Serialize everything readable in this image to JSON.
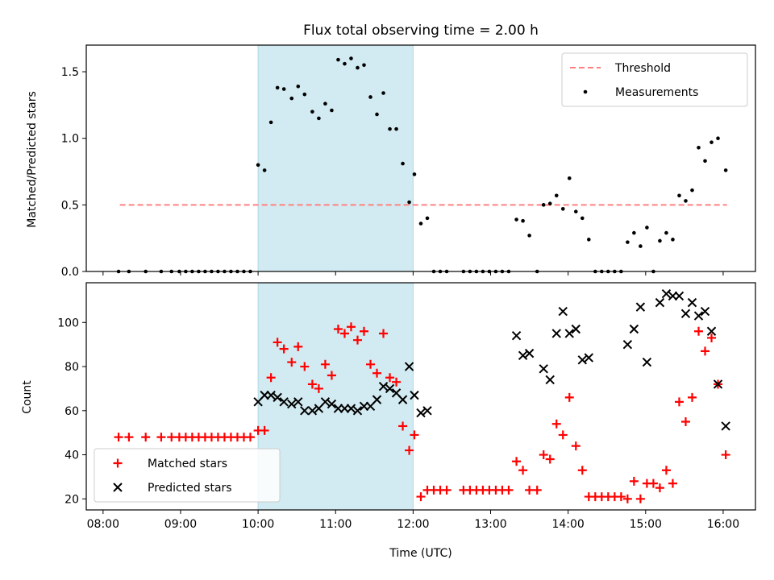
{
  "chart_data": {
    "title": "Flux total observing time = 2.00 h",
    "xlabel": "Time (UTC)",
    "x_ticks": [
      "08:00",
      "09:00",
      "10:00",
      "11:00",
      "12:00",
      "13:00",
      "14:00",
      "15:00",
      "16:00"
    ],
    "x_range": [
      "07:47",
      "16:25"
    ],
    "highlight_interval": [
      "10:00",
      "12:00"
    ],
    "highlight_color": "#add8e6",
    "panels": [
      {
        "type": "scatter",
        "ylabel": "Matched/Predicted stars",
        "ylim": [
          0.0,
          1.7
        ],
        "y_ticks": [
          "0.0",
          "0.5",
          "1.0",
          "1.5"
        ],
        "legend_position": "top-right",
        "threshold": {
          "name": "Threshold",
          "value": 0.5,
          "x_start": "08:13",
          "x_end": "16:03",
          "color": "#ff8080",
          "style": "dashed"
        },
        "series": [
          {
            "name": "Measurements",
            "color": "#000000",
            "marker": "dot",
            "points": [
              [
                "08:12",
                0.0
              ],
              [
                "08:20",
                0.0
              ],
              [
                "08:33",
                0.0
              ],
              [
                "08:45",
                0.0
              ],
              [
                "08:53",
                0.0
              ],
              [
                "08:59",
                0.0
              ],
              [
                "09:04",
                0.0
              ],
              [
                "09:09",
                0.0
              ],
              [
                "09:14",
                0.0
              ],
              [
                "09:19",
                0.0
              ],
              [
                "09:24",
                0.0
              ],
              [
                "09:29",
                0.0
              ],
              [
                "09:34",
                0.0
              ],
              [
                "09:39",
                0.0
              ],
              [
                "09:44",
                0.0
              ],
              [
                "09:49",
                0.0
              ],
              [
                "09:54",
                0.0
              ],
              [
                "10:00",
                0.8
              ],
              [
                "10:05",
                0.76
              ],
              [
                "10:10",
                1.12
              ],
              [
                "10:15",
                1.38
              ],
              [
                "10:20",
                1.37
              ],
              [
                "10:26",
                1.3
              ],
              [
                "10:31",
                1.39
              ],
              [
                "10:36",
                1.33
              ],
              [
                "10:42",
                1.2
              ],
              [
                "10:47",
                1.15
              ],
              [
                "10:52",
                1.26
              ],
              [
                "10:57",
                1.21
              ],
              [
                "11:02",
                1.59
              ],
              [
                "11:07",
                1.56
              ],
              [
                "11:12",
                1.6
              ],
              [
                "11:17",
                1.53
              ],
              [
                "11:22",
                1.55
              ],
              [
                "11:27",
                1.31
              ],
              [
                "11:32",
                1.18
              ],
              [
                "11:37",
                1.34
              ],
              [
                "11:42",
                1.07
              ],
              [
                "11:47",
                1.07
              ],
              [
                "11:52",
                0.81
              ],
              [
                "11:57",
                0.52
              ],
              [
                "12:01",
                0.73
              ],
              [
                "12:06",
                0.36
              ],
              [
                "12:11",
                0.4
              ],
              [
                "12:16",
                0.0
              ],
              [
                "12:21",
                0.0
              ],
              [
                "12:26",
                0.0
              ],
              [
                "12:39",
                0.0
              ],
              [
                "12:44",
                0.0
              ],
              [
                "12:49",
                0.0
              ],
              [
                "12:54",
                0.0
              ],
              [
                "12:59",
                0.0
              ],
              [
                "13:04",
                0.0
              ],
              [
                "13:09",
                0.0
              ],
              [
                "13:14",
                0.0
              ],
              [
                "13:20",
                0.39
              ],
              [
                "13:25",
                0.38
              ],
              [
                "13:30",
                0.27
              ],
              [
                "13:36",
                0.0
              ],
              [
                "13:41",
                0.5
              ],
              [
                "13:46",
                0.51
              ],
              [
                "13:51",
                0.57
              ],
              [
                "13:56",
                0.47
              ],
              [
                "14:01",
                0.7
              ],
              [
                "14:06",
                0.45
              ],
              [
                "14:11",
                0.4
              ],
              [
                "14:16",
                0.24
              ],
              [
                "14:21",
                0.0
              ],
              [
                "14:26",
                0.0
              ],
              [
                "14:31",
                0.0
              ],
              [
                "14:36",
                0.0
              ],
              [
                "14:41",
                0.0
              ],
              [
                "14:46",
                0.22
              ],
              [
                "14:51",
                0.29
              ],
              [
                "14:56",
                0.19
              ],
              [
                "15:01",
                0.33
              ],
              [
                "15:06",
                0.0
              ],
              [
                "15:11",
                0.23
              ],
              [
                "15:16",
                0.29
              ],
              [
                "15:21",
                0.24
              ],
              [
                "15:26",
                0.57
              ],
              [
                "15:31",
                0.53
              ],
              [
                "15:36",
                0.61
              ],
              [
                "15:41",
                0.93
              ],
              [
                "15:46",
                0.83
              ],
              [
                "15:51",
                0.97
              ],
              [
                "15:56",
                1.0
              ],
              [
                "16:02",
                0.76
              ]
            ]
          }
        ]
      },
      {
        "type": "scatter",
        "ylabel": "Count",
        "ylim": [
          15,
          118
        ],
        "y_ticks": [
          "20",
          "40",
          "60",
          "80",
          "100"
        ],
        "legend_position": "bottom-left",
        "series": [
          {
            "name": "Matched stars",
            "color": "#ff0000",
            "marker": "plus",
            "points": [
              [
                "08:12",
                48
              ],
              [
                "08:20",
                48
              ],
              [
                "08:33",
                48
              ],
              [
                "08:45",
                48
              ],
              [
                "08:53",
                48
              ],
              [
                "08:59",
                48
              ],
              [
                "09:04",
                48
              ],
              [
                "09:09",
                48
              ],
              [
                "09:14",
                48
              ],
              [
                "09:19",
                48
              ],
              [
                "09:24",
                48
              ],
              [
                "09:29",
                48
              ],
              [
                "09:34",
                48
              ],
              [
                "09:39",
                48
              ],
              [
                "09:44",
                48
              ],
              [
                "09:49",
                48
              ],
              [
                "09:54",
                48
              ],
              [
                "10:00",
                51
              ],
              [
                "10:05",
                51
              ],
              [
                "10:10",
                75
              ],
              [
                "10:15",
                91
              ],
              [
                "10:20",
                88
              ],
              [
                "10:26",
                82
              ],
              [
                "10:31",
                89
              ],
              [
                "10:36",
                80
              ],
              [
                "10:42",
                72
              ],
              [
                "10:47",
                70
              ],
              [
                "10:52",
                81
              ],
              [
                "10:57",
                76
              ],
              [
                "11:02",
                97
              ],
              [
                "11:07",
                95
              ],
              [
                "11:12",
                98
              ],
              [
                "11:17",
                92
              ],
              [
                "11:22",
                96
              ],
              [
                "11:27",
                81
              ],
              [
                "11:32",
                77
              ],
              [
                "11:37",
                95
              ],
              [
                "11:42",
                75
              ],
              [
                "11:47",
                73
              ],
              [
                "11:52",
                53
              ],
              [
                "11:57",
                42
              ],
              [
                "12:01",
                49
              ],
              [
                "12:06",
                21
              ],
              [
                "12:11",
                24
              ],
              [
                "12:16",
                24
              ],
              [
                "12:21",
                24
              ],
              [
                "12:26",
                24
              ],
              [
                "12:39",
                24
              ],
              [
                "12:44",
                24
              ],
              [
                "12:49",
                24
              ],
              [
                "12:54",
                24
              ],
              [
                "12:59",
                24
              ],
              [
                "13:04",
                24
              ],
              [
                "13:09",
                24
              ],
              [
                "13:14",
                24
              ],
              [
                "13:20",
                37
              ],
              [
                "13:25",
                33
              ],
              [
                "13:30",
                24
              ],
              [
                "13:36",
                24
              ],
              [
                "13:41",
                40
              ],
              [
                "13:46",
                38
              ],
              [
                "13:51",
                54
              ],
              [
                "13:56",
                49
              ],
              [
                "14:01",
                66
              ],
              [
                "14:06",
                44
              ],
              [
                "14:11",
                33
              ],
              [
                "14:16",
                21
              ],
              [
                "14:21",
                21
              ],
              [
                "14:26",
                21
              ],
              [
                "14:31",
                21
              ],
              [
                "14:36",
                21
              ],
              [
                "14:41",
                21
              ],
              [
                "14:46",
                20
              ],
              [
                "14:51",
                28
              ],
              [
                "14:56",
                20
              ],
              [
                "15:01",
                27
              ],
              [
                "15:06",
                27
              ],
              [
                "15:11",
                25
              ],
              [
                "15:16",
                33
              ],
              [
                "15:21",
                27
              ],
              [
                "15:26",
                64
              ],
              [
                "15:31",
                55
              ],
              [
                "15:36",
                66
              ],
              [
                "15:41",
                96
              ],
              [
                "15:46",
                87
              ],
              [
                "15:51",
                93
              ],
              [
                "15:56",
                72
              ],
              [
                "16:02",
                40
              ]
            ]
          },
          {
            "name": "Predicted stars",
            "color": "#000000",
            "marker": "x",
            "points": [
              [
                "10:00",
                64
              ],
              [
                "10:05",
                67
              ],
              [
                "10:10",
                67
              ],
              [
                "10:15",
                66
              ],
              [
                "10:20",
                64
              ],
              [
                "10:26",
                63
              ],
              [
                "10:31",
                64
              ],
              [
                "10:36",
                60
              ],
              [
                "10:42",
                60
              ],
              [
                "10:47",
                61
              ],
              [
                "10:52",
                64
              ],
              [
                "10:57",
                63
              ],
              [
                "11:02",
                61
              ],
              [
                "11:07",
                61
              ],
              [
                "11:12",
                61
              ],
              [
                "11:17",
                60
              ],
              [
                "11:22",
                62
              ],
              [
                "11:27",
                62
              ],
              [
                "11:32",
                65
              ],
              [
                "11:37",
                71
              ],
              [
                "11:42",
                70
              ],
              [
                "11:47",
                68
              ],
              [
                "11:52",
                65
              ],
              [
                "11:57",
                80
              ],
              [
                "12:01",
                67
              ],
              [
                "12:06",
                59
              ],
              [
                "12:11",
                60
              ],
              [
                "13:20",
                94
              ],
              [
                "13:25",
                85
              ],
              [
                "13:30",
                86
              ],
              [
                "13:41",
                79
              ],
              [
                "13:46",
                74
              ],
              [
                "13:51",
                95
              ],
              [
                "13:56",
                105
              ],
              [
                "14:01",
                95
              ],
              [
                "14:06",
                97
              ],
              [
                "14:11",
                83
              ],
              [
                "14:16",
                84
              ],
              [
                "14:46",
                90
              ],
              [
                "14:51",
                97
              ],
              [
                "14:56",
                107
              ],
              [
                "15:01",
                82
              ],
              [
                "15:11",
                109
              ],
              [
                "15:16",
                113
              ],
              [
                "15:21",
                112
              ],
              [
                "15:26",
                112
              ],
              [
                "15:31",
                104
              ],
              [
                "15:36",
                109
              ],
              [
                "15:41",
                103
              ],
              [
                "15:46",
                105
              ],
              [
                "15:51",
                96
              ],
              [
                "15:56",
                72
              ],
              [
                "16:02",
                53
              ]
            ]
          }
        ]
      }
    ]
  }
}
